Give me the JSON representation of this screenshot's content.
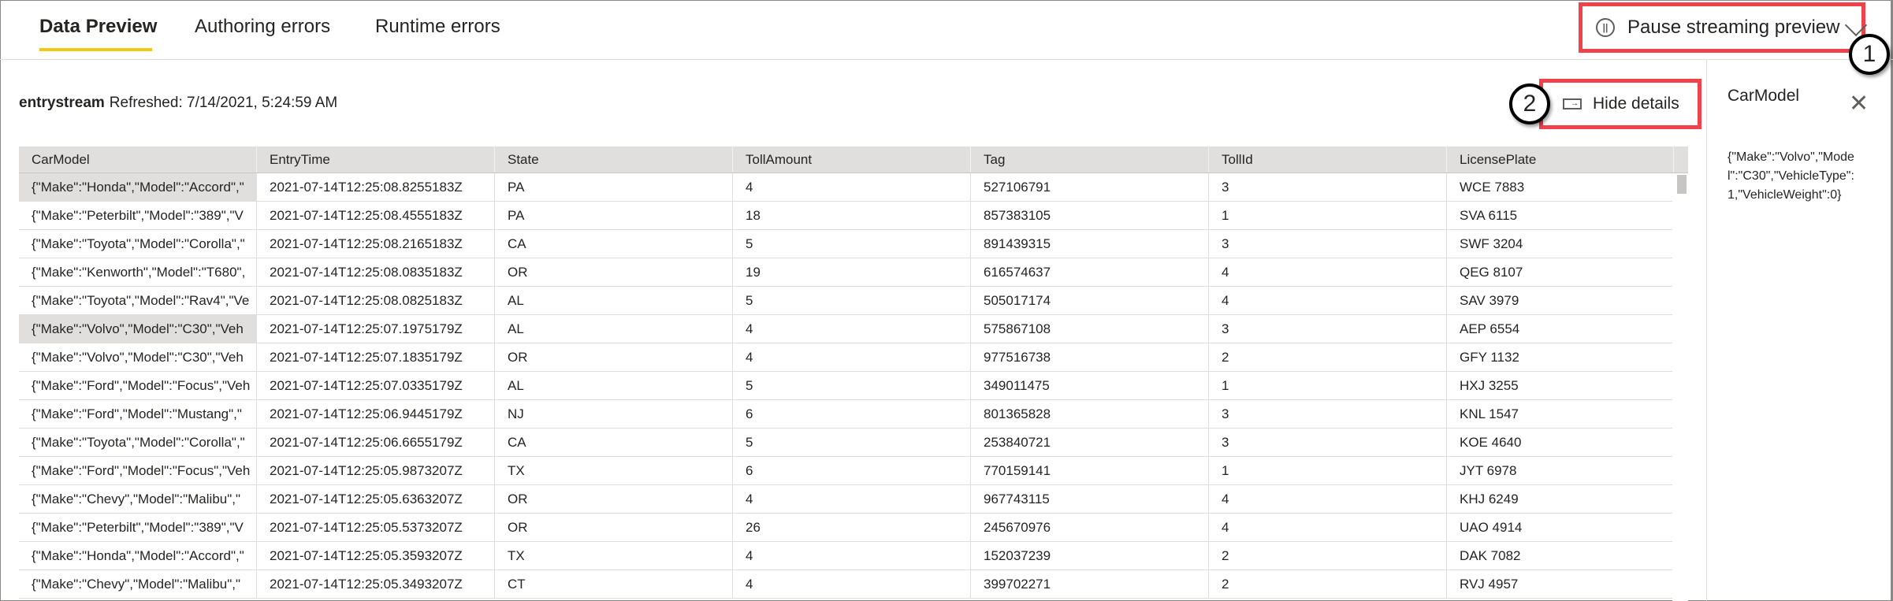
{
  "tabs": [
    {
      "label": "Data Preview",
      "active": true
    },
    {
      "label": "Authoring errors"
    },
    {
      "label": "Runtime errors"
    }
  ],
  "pause": {
    "label": "Pause streaming preview",
    "icon": "pause-circle-icon"
  },
  "callouts": [
    "1",
    "2"
  ],
  "hide_details": {
    "label": "Hide details",
    "icon": "panel-collapse-icon"
  },
  "stream": {
    "name": "entrystream",
    "refreshed": "Refreshed: 7/14/2021, 5:24:59 AM"
  },
  "columns": [
    "CarModel",
    "EntryTime",
    "State",
    "TollAmount",
    "Tag",
    "TollId",
    "LicensePlate"
  ],
  "rows": [
    [
      "{\"Make\":\"Honda\",\"Model\":\"Accord\",\"",
      "2021-07-14T12:25:08.8255183Z",
      "PA",
      "4",
      "527106791",
      "3",
      "WCE 7883"
    ],
    [
      "{\"Make\":\"Peterbilt\",\"Model\":\"389\",\"V",
      "2021-07-14T12:25:08.4555183Z",
      "PA",
      "18",
      "857383105",
      "1",
      "SVA 6115"
    ],
    [
      "{\"Make\":\"Toyota\",\"Model\":\"Corolla\",\"",
      "2021-07-14T12:25:08.2165183Z",
      "CA",
      "5",
      "891439315",
      "3",
      "SWF 3204"
    ],
    [
      "{\"Make\":\"Kenworth\",\"Model\":\"T680\",",
      "2021-07-14T12:25:08.0835183Z",
      "OR",
      "19",
      "616574637",
      "4",
      "QEG 8107"
    ],
    [
      "{\"Make\":\"Toyota\",\"Model\":\"Rav4\",\"Ve",
      "2021-07-14T12:25:08.0825183Z",
      "AL",
      "5",
      "505017174",
      "4",
      "SAV 3979"
    ],
    [
      "{\"Make\":\"Volvo\",\"Model\":\"C30\",\"Veh",
      "2021-07-14T12:25:07.1975179Z",
      "AL",
      "4",
      "575867108",
      "3",
      "AEP 6554"
    ],
    [
      "{\"Make\":\"Volvo\",\"Model\":\"C30\",\"Veh",
      "2021-07-14T12:25:07.1835179Z",
      "OR",
      "4",
      "977516738",
      "2",
      "GFY 1132"
    ],
    [
      "{\"Make\":\"Ford\",\"Model\":\"Focus\",\"Veh",
      "2021-07-14T12:25:07.0335179Z",
      "AL",
      "5",
      "349011475",
      "1",
      "HXJ 3255"
    ],
    [
      "{\"Make\":\"Ford\",\"Model\":\"Mustang\",\"",
      "2021-07-14T12:25:06.9445179Z",
      "NJ",
      "6",
      "801365828",
      "3",
      "KNL 1547"
    ],
    [
      "{\"Make\":\"Toyota\",\"Model\":\"Corolla\",\"",
      "2021-07-14T12:25:06.6655179Z",
      "CA",
      "5",
      "253840721",
      "3",
      "KOE 4640"
    ],
    [
      "{\"Make\":\"Ford\",\"Model\":\"Focus\",\"Veh",
      "2021-07-14T12:25:05.9873207Z",
      "TX",
      "6",
      "770159141",
      "1",
      "JYT 6978"
    ],
    [
      "{\"Make\":\"Chevy\",\"Model\":\"Malibu\",\"",
      "2021-07-14T12:25:05.6363207Z",
      "OR",
      "4",
      "967743115",
      "4",
      "KHJ 6249"
    ],
    [
      "{\"Make\":\"Peterbilt\",\"Model\":\"389\",\"V",
      "2021-07-14T12:25:05.5373207Z",
      "OR",
      "26",
      "245670976",
      "4",
      "UAO 4914"
    ],
    [
      "{\"Make\":\"Honda\",\"Model\":\"Accord\",\"",
      "2021-07-14T12:25:05.3593207Z",
      "TX",
      "4",
      "152037239",
      "2",
      "DAK 7082"
    ],
    [
      "{\"Make\":\"Chevy\",\"Model\":\"Malibu\",\"",
      "2021-07-14T12:25:05.3493207Z",
      "CT",
      "4",
      "399702271",
      "2",
      "RVJ 4957"
    ]
  ],
  "selected_rows": [
    0,
    5
  ],
  "details": {
    "title": "CarModel",
    "value": "{\"Make\":\"Volvo\",\"Model\":\"C30\",\"VehicleType\":1,\"VehicleWeight\":0}"
  },
  "colors": {
    "accent": "#f2c811",
    "highlight": "#f0424a"
  }
}
